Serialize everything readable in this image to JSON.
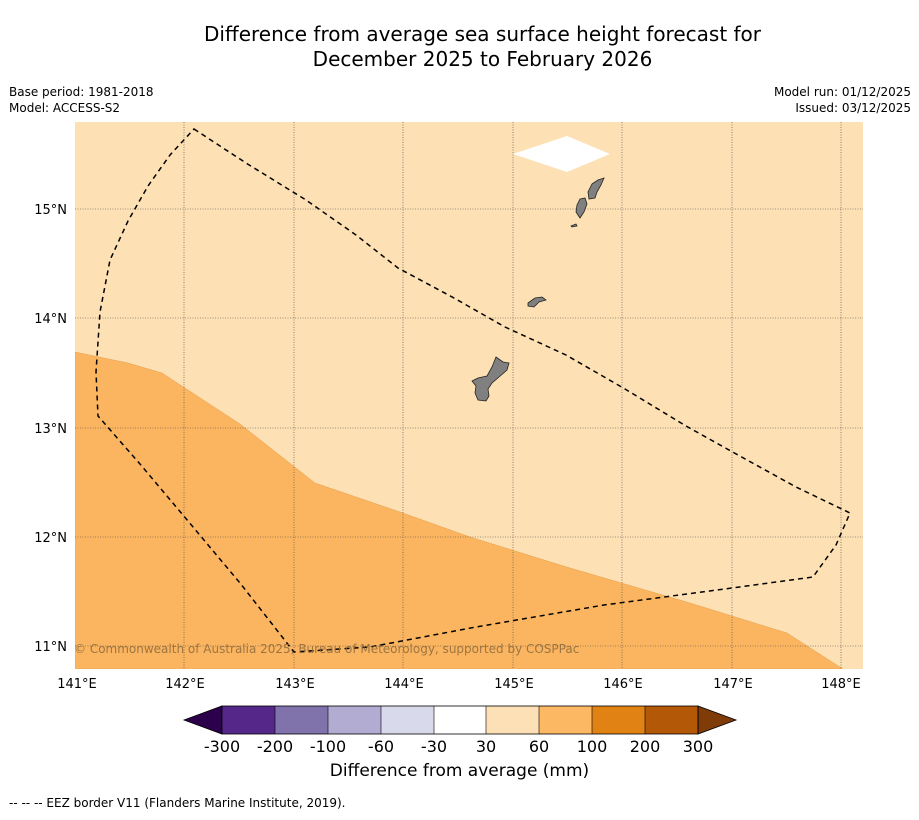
{
  "title_line1": "Difference from average sea surface height forecast for",
  "title_line2": "December 2025 to February 2026",
  "meta_left": [
    "Base period: 1981-2018",
    "Model: ACCESS-S2"
  ],
  "meta_right": [
    "Model run: 01/12/2025",
    "Issued: 03/12/2025"
  ],
  "map": {
    "lon_labels": [
      "141°E",
      "142°E",
      "143°E",
      "144°E",
      "145°E",
      "146°E",
      "147°E",
      "148°E"
    ],
    "lat_labels": [
      "15°N",
      "14°N",
      "13°N",
      "12°N",
      "11°N"
    ],
    "copyright": "© Commonwealth of Australia 2025, Bureau of Meteorology, supported by COSPPac",
    "fill_colors": {
      "band_30_60": "#fde0b3",
      "band_60_100": "#fbb560",
      "land": "#808080",
      "nodata": "#ffffff"
    },
    "eez_style": "dashed black line"
  },
  "colorbar": {
    "tick_labels": [
      "-300",
      "-200",
      "-100",
      "-60",
      "-30",
      "30",
      "60",
      "100",
      "200",
      "300"
    ],
    "colors": [
      "#2d004b",
      "#542788",
      "#8073ac",
      "#b2abd2",
      "#d8daeb",
      "#ffffff",
      "#fee0b6",
      "#fdb863",
      "#e08214",
      "#b35806",
      "#7f3b08"
    ],
    "label": "Difference from average (mm)"
  },
  "footnote": "--  --  -- EEZ border V11 (Flanders Marine Institute, 2019)."
}
